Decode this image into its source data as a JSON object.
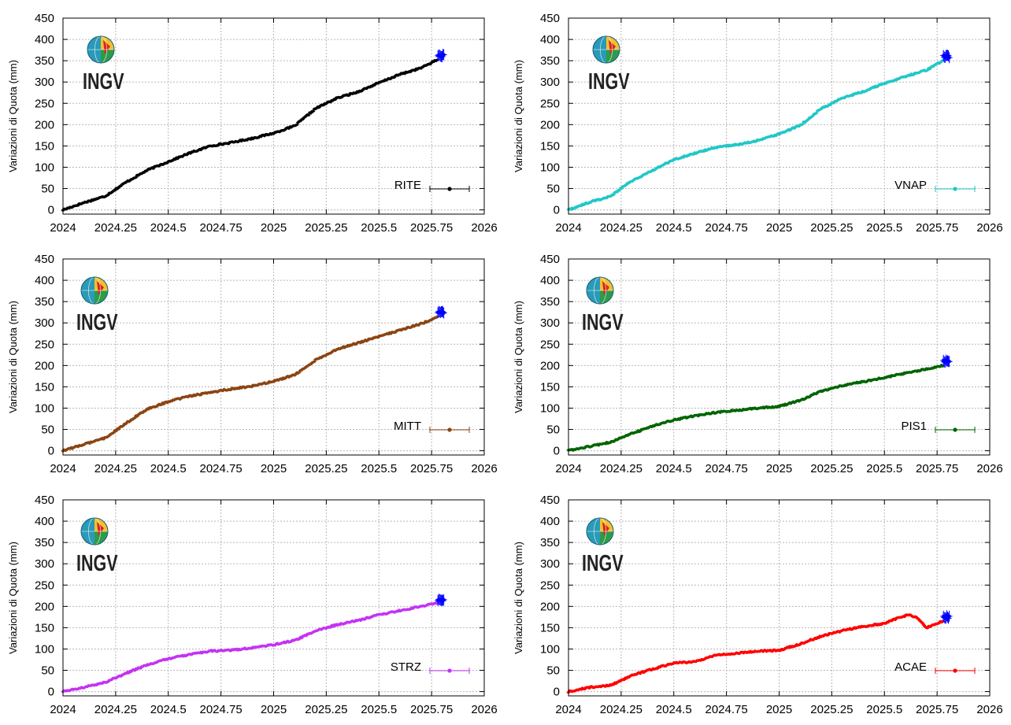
{
  "page": {
    "background": "#ffffff"
  },
  "logo": {
    "text": "INGV",
    "icon": "ingv-globe-icon"
  },
  "ylabel": "Variazioni di Quota (mm)",
  "xticks": [
    "2024",
    "2024.25",
    "2024.5",
    "2024.75",
    "2025",
    "2025.25",
    "2025.5",
    "2025.75",
    "2026"
  ],
  "yticks": [
    "0",
    "50",
    "100",
    "150",
    "200",
    "250",
    "300",
    "350",
    "400",
    "450"
  ],
  "latest_color": "#0000ff",
  "chart_data": [
    {
      "type": "scatter",
      "station": "RITE",
      "color": "#000000",
      "xlim": [
        2024,
        2026
      ],
      "ylim": [
        -10,
        450
      ],
      "grid": true,
      "legend": "bottom-right",
      "x": [
        2024.0,
        2024.1,
        2024.2,
        2024.3,
        2024.4,
        2024.5,
        2024.6,
        2024.7,
        2024.8,
        2024.9,
        2025.0,
        2025.1,
        2025.2,
        2025.3,
        2025.4,
        2025.5,
        2025.6,
        2025.7,
        2025.8
      ],
      "y": [
        0,
        17,
        32,
        65,
        93,
        113,
        133,
        150,
        158,
        168,
        180,
        197,
        238,
        262,
        277,
        298,
        318,
        333,
        358
      ],
      "latest": [
        2025.8,
        362
      ]
    },
    {
      "type": "scatter",
      "station": "VNAP",
      "color": "#22c7c7",
      "xlim": [
        2024,
        2026
      ],
      "ylim": [
        -10,
        450
      ],
      "grid": true,
      "legend": "bottom-right",
      "x": [
        2024.0,
        2024.1,
        2024.2,
        2024.3,
        2024.4,
        2024.5,
        2024.6,
        2024.7,
        2024.8,
        2024.9,
        2025.0,
        2025.1,
        2025.2,
        2025.3,
        2025.4,
        2025.5,
        2025.6,
        2025.7,
        2025.8
      ],
      "y": [
        0,
        18,
        32,
        68,
        93,
        118,
        133,
        147,
        153,
        163,
        178,
        198,
        238,
        262,
        278,
        297,
        313,
        328,
        357
      ],
      "latest": [
        2025.8,
        360
      ]
    },
    {
      "type": "scatter",
      "station": "MITT",
      "color": "#8b4513",
      "xlim": [
        2024,
        2026
      ],
      "ylim": [
        -10,
        450
      ],
      "grid": true,
      "legend": "bottom-right",
      "x": [
        2024.0,
        2024.1,
        2024.2,
        2024.3,
        2024.4,
        2024.5,
        2024.6,
        2024.7,
        2024.8,
        2024.9,
        2025.0,
        2025.1,
        2025.2,
        2025.3,
        2025.4,
        2025.5,
        2025.6,
        2025.7,
        2025.8
      ],
      "y": [
        0,
        15,
        30,
        65,
        98,
        115,
        128,
        137,
        145,
        152,
        163,
        178,
        213,
        238,
        253,
        268,
        283,
        298,
        318
      ],
      "latest": [
        2025.8,
        325
      ]
    },
    {
      "type": "scatter",
      "station": "PIS1",
      "color": "#006400",
      "xlim": [
        2024,
        2026
      ],
      "ylim": [
        -10,
        450
      ],
      "grid": true,
      "legend": "bottom-right",
      "x": [
        2024.0,
        2024.1,
        2024.2,
        2024.3,
        2024.4,
        2024.5,
        2024.6,
        2024.7,
        2024.8,
        2024.9,
        2025.0,
        2025.1,
        2025.2,
        2025.3,
        2025.4,
        2025.5,
        2025.6,
        2025.7,
        2025.8
      ],
      "y": [
        0,
        10,
        20,
        40,
        58,
        72,
        82,
        90,
        95,
        100,
        104,
        118,
        140,
        153,
        162,
        172,
        182,
        192,
        203
      ],
      "latest": [
        2025.8,
        210
      ]
    },
    {
      "type": "scatter",
      "station": "STRZ",
      "color": "#c433f2",
      "xlim": [
        2024,
        2026
      ],
      "ylim": [
        -10,
        450
      ],
      "grid": true,
      "legend": "bottom-right",
      "x": [
        2024.0,
        2024.1,
        2024.2,
        2024.3,
        2024.4,
        2024.5,
        2024.6,
        2024.7,
        2024.8,
        2024.9,
        2025.0,
        2025.1,
        2025.2,
        2025.3,
        2025.4,
        2025.5,
        2025.6,
        2025.7,
        2025.8
      ],
      "y": [
        0,
        10,
        22,
        43,
        63,
        77,
        87,
        95,
        97,
        103,
        110,
        120,
        143,
        157,
        167,
        180,
        190,
        200,
        210
      ],
      "latest": [
        2025.8,
        215
      ]
    },
    {
      "type": "scatter",
      "station": "ACAE",
      "color": "#ff0000",
      "xlim": [
        2024,
        2026
      ],
      "ylim": [
        -10,
        450
      ],
      "grid": true,
      "legend": "bottom-right",
      "x": [
        2024.0,
        2024.1,
        2024.2,
        2024.3,
        2024.4,
        2024.5,
        2024.6,
        2024.7,
        2024.8,
        2024.9,
        2025.0,
        2025.1,
        2025.2,
        2025.3,
        2025.4,
        2025.5,
        2025.55,
        2025.6,
        2025.62,
        2025.65,
        2025.7,
        2025.75,
        2025.8
      ],
      "y": [
        0,
        10,
        15,
        38,
        53,
        67,
        70,
        85,
        90,
        95,
        97,
        112,
        130,
        143,
        153,
        160,
        170,
        178,
        180,
        175,
        150,
        160,
        170
      ],
      "latest": [
        2025.8,
        175
      ]
    }
  ]
}
